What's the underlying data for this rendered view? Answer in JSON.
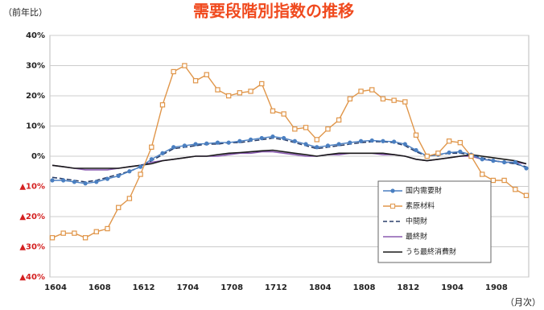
{
  "chart_data": {
    "type": "line",
    "title": "需要段階別指数の推移",
    "y_label": "（前年比）",
    "x_label": "（月次）",
    "categories": [
      "1604",
      null,
      null,
      null,
      "1608",
      null,
      null,
      null,
      "1612",
      null,
      null,
      null,
      "1704",
      null,
      null,
      null,
      "1708",
      null,
      null,
      null,
      "1712",
      null,
      null,
      null,
      "1804",
      null,
      null,
      null,
      "1808",
      null,
      null,
      null,
      "1812",
      null,
      null,
      null,
      "1904",
      null,
      null,
      null,
      "1908",
      null,
      null,
      null
    ],
    "series": [
      {
        "name": "国内需要財",
        "color": "#4a7fc1",
        "marker": "circle",
        "dash": false,
        "values": [
          -8,
          -8,
          -8.5,
          -9,
          -8.5,
          -7.5,
          -6.5,
          -5,
          -3.5,
          -1,
          1,
          3,
          3.5,
          4,
          4.2,
          4.5,
          4.5,
          5,
          5.5,
          6,
          6.5,
          6,
          5,
          4,
          3,
          3.5,
          4,
          4.5,
          5,
          5.2,
          5,
          4.8,
          4,
          2,
          0,
          0.5,
          1.2,
          1.5,
          0.5,
          -1,
          -1.5,
          -2,
          -2,
          -4
        ]
      },
      {
        "name": "素原材料",
        "color": "#e0964a",
        "marker": "square",
        "dash": false,
        "values": [
          -27,
          -25.5,
          -25.5,
          -27,
          -25,
          -24,
          -17,
          -14,
          -6,
          3,
          17,
          28,
          30,
          25,
          27,
          22,
          20,
          21,
          21.5,
          24,
          15,
          14,
          9,
          9.5,
          5.5,
          9,
          12,
          19,
          21.5,
          22,
          19,
          18.5,
          18,
          7,
          0,
          1,
          5,
          4.5,
          0,
          -6,
          -8,
          -8,
          -11,
          -13
        ]
      },
      {
        "name": "中間財",
        "color": "#2a3f6a",
        "marker": "none",
        "dash": true,
        "values": [
          -7,
          -7.5,
          -8,
          -8.5,
          -8,
          -7,
          -6,
          -5,
          -3.5,
          -1.5,
          0.5,
          2.5,
          3,
          3.5,
          4,
          4,
          4.5,
          4.5,
          5,
          5.5,
          6,
          5.5,
          4.5,
          3.5,
          2.5,
          3,
          3.5,
          4,
          4.5,
          4.8,
          4.8,
          4.5,
          3.5,
          1.5,
          0,
          0.5,
          1,
          1,
          0.5,
          -0.5,
          -1.5,
          -2,
          -2.5,
          -3.5
        ]
      },
      {
        "name": "最終財",
        "color": "#8a5bb0",
        "marker": "none",
        "dash": false,
        "values": [
          -3,
          -3.5,
          -4,
          -4.5,
          -4.5,
          -4.5,
          -4,
          -3.5,
          -3,
          -2,
          -1.5,
          -1,
          -0.5,
          0,
          0,
          0,
          0.5,
          1,
          1,
          1.5,
          1.5,
          1,
          0.5,
          0,
          0,
          0.5,
          0.5,
          1,
          1,
          1,
          0.5,
          0.5,
          0,
          -1,
          -1.5,
          -1,
          -0.5,
          0,
          0,
          -1,
          -1.5,
          -2,
          -2,
          -2.5
        ]
      },
      {
        "name": "うち最終消費財",
        "color": "#1a1a1a",
        "marker": "none",
        "dash": false,
        "values": [
          -3,
          -3.5,
          -4,
          -4,
          -4,
          -4,
          -4,
          -3.5,
          -3,
          -2.5,
          -1.5,
          -1,
          -0.5,
          0,
          0,
          0.5,
          1,
          1.2,
          1.5,
          1.8,
          2,
          1.5,
          1,
          0.5,
          0,
          0.5,
          1,
          1,
          1,
          1,
          1,
          0.5,
          0,
          -1,
          -1.5,
          -1,
          -0.5,
          0,
          0.5,
          0,
          -0.5,
          -1,
          -1.5,
          -2.5
        ]
      }
    ],
    "ylim": [
      -40,
      40
    ],
    "yticks": [
      {
        "value": -40,
        "label": "▲40%"
      },
      {
        "value": -30,
        "label": "▲30%"
      },
      {
        "value": -20,
        "label": "▲20%"
      },
      {
        "value": -10,
        "label": "▲10%"
      },
      {
        "value": 0,
        "label": "0%"
      },
      {
        "value": 10,
        "label": "10%"
      },
      {
        "value": 20,
        "label": "20%"
      },
      {
        "value": 30,
        "label": "30%"
      },
      {
        "value": 40,
        "label": "40%"
      }
    ],
    "grid": true,
    "legend": "lower right"
  }
}
